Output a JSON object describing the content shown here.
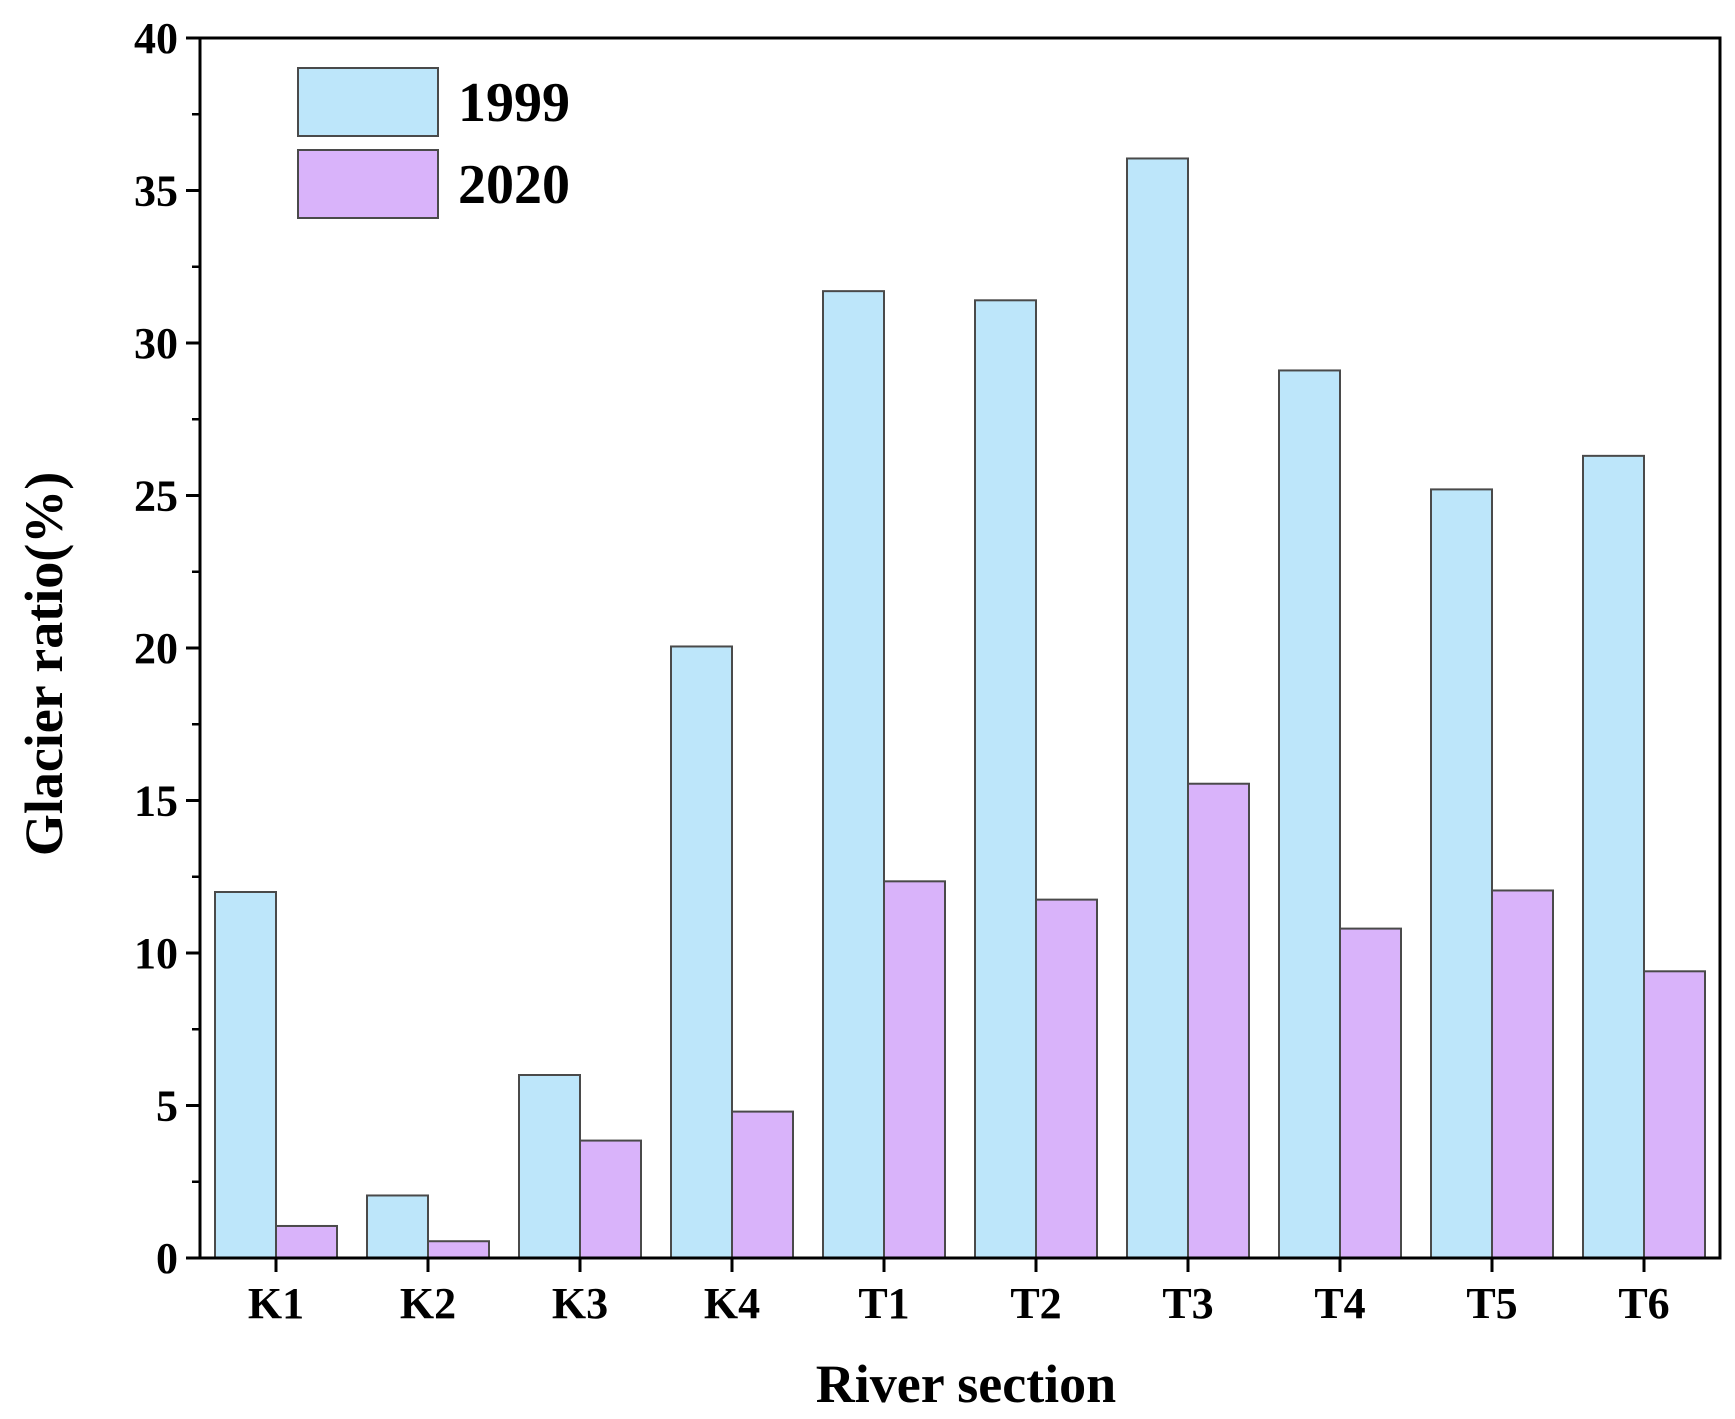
{
  "chart_data": {
    "type": "bar",
    "title": "",
    "xlabel": "River section",
    "ylabel": "Glacier ratio(%)",
    "ylim": [
      0,
      40
    ],
    "yticks": [
      0,
      5,
      10,
      15,
      20,
      25,
      30,
      35,
      40
    ],
    "categories": [
      "K1",
      "K2",
      "K3",
      "K4",
      "T1",
      "T2",
      "T3",
      "T4",
      "T5",
      "T6"
    ],
    "series": [
      {
        "name": "1999",
        "color": "#bde6fa",
        "values": [
          12.0,
          2.05,
          6.0,
          20.05,
          31.7,
          31.4,
          36.05,
          29.1,
          25.2,
          26.3
        ]
      },
      {
        "name": "2020",
        "color": "#d9b3fa",
        "values": [
          1.05,
          0.55,
          3.85,
          4.8,
          12.35,
          11.75,
          15.55,
          10.8,
          12.05,
          9.4
        ]
      }
    ],
    "legend": "top-left",
    "grid": false
  }
}
